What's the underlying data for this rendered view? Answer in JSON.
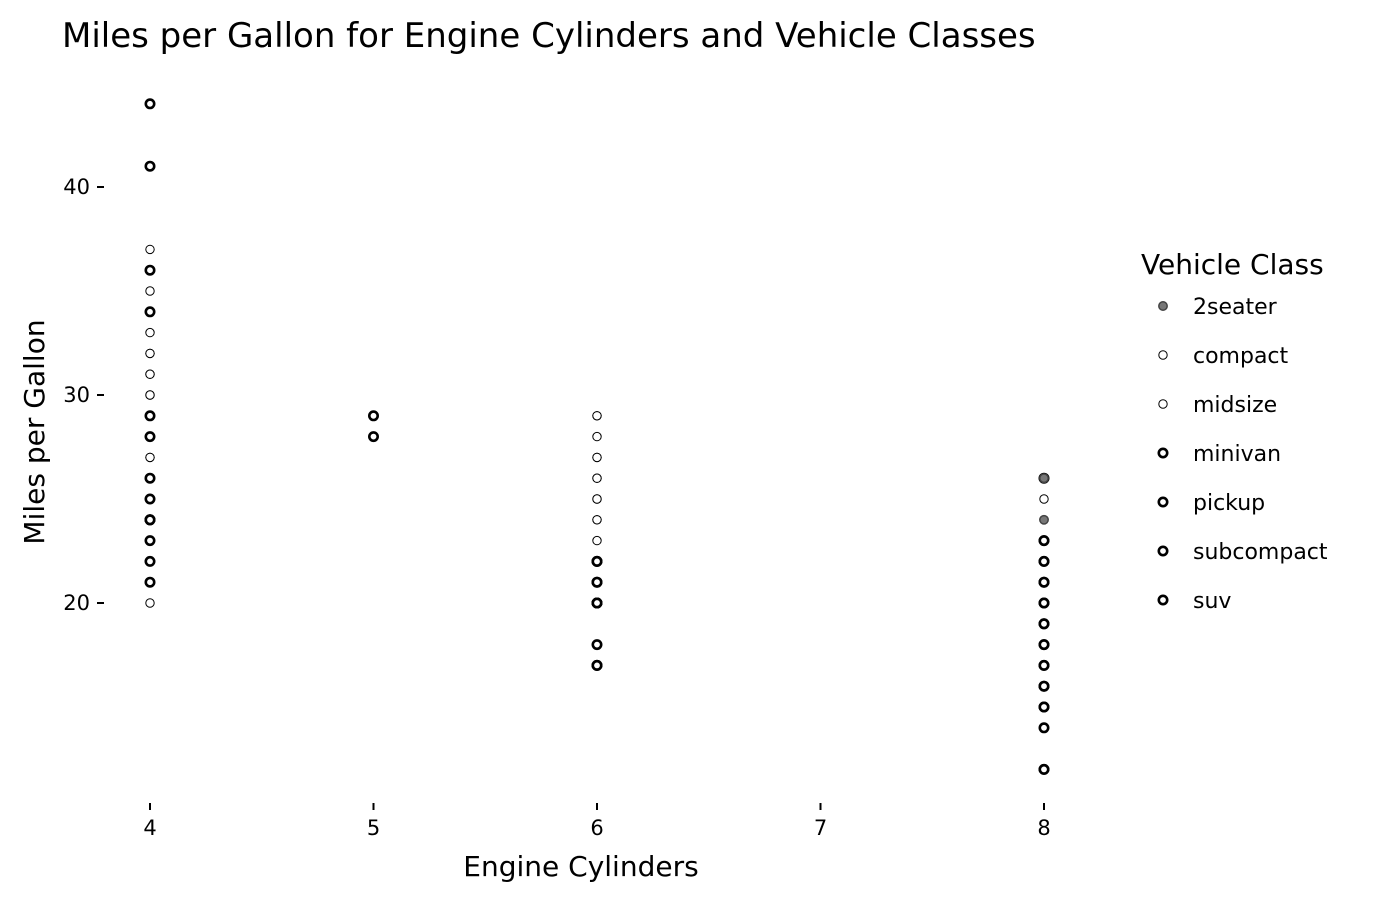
{
  "chart_data": {
    "type": "scatter",
    "title": "Miles per Gallon for Engine Cylinders and Vehicle Classes",
    "xlabel": "Engine Cylinders",
    "ylabel": "Miles per Gallon",
    "xlim": [
      3.6,
      8.4
    ],
    "ylim": [
      10.8,
      45.5
    ],
    "xticks": [
      4,
      5,
      6,
      7,
      8
    ],
    "yticks": [
      20,
      30,
      40
    ],
    "grid": false,
    "legend": {
      "title": "Vehicle Class",
      "placement": "right",
      "entries": [
        "2seater",
        "compact",
        "midsize",
        "minivan",
        "pickup",
        "subcompact",
        "suv"
      ]
    },
    "series": [
      {
        "name": "2seater",
        "x": [
          8,
          8
        ],
        "y": [
          26,
          24
        ]
      },
      {
        "name": "compact",
        "x": [
          4,
          4,
          4,
          4,
          4,
          4,
          4,
          4,
          4,
          4,
          4,
          4,
          4,
          4,
          4,
          4,
          6,
          6,
          6,
          6,
          6,
          6,
          8
        ],
        "y": [
          37,
          35,
          34,
          33,
          32,
          31,
          30,
          29,
          28,
          27,
          26,
          25,
          24,
          23,
          22,
          20,
          29,
          28,
          27,
          26,
          25,
          24,
          25
        ]
      },
      {
        "name": "midsize",
        "x": [
          4,
          4,
          4,
          4,
          4,
          4,
          4,
          4,
          4,
          6,
          6,
          6,
          6,
          6,
          6,
          6,
          6,
          8,
          8
        ],
        "y": [
          32,
          31,
          30,
          29,
          28,
          27,
          26,
          24,
          23,
          29,
          27,
          26,
          25,
          24,
          23,
          21,
          18,
          24,
          23
        ]
      },
      {
        "name": "minivan",
        "x": [
          4,
          4,
          6,
          6,
          6,
          6,
          6
        ],
        "y": [
          24,
          21,
          22,
          21,
          20,
          18,
          17
        ]
      },
      {
        "name": "pickup",
        "x": [
          6,
          6,
          8,
          8,
          8,
          8,
          8,
          8,
          8,
          8,
          8,
          8
        ],
        "y": [
          20,
          17,
          22,
          21,
          20,
          19,
          18,
          17,
          16,
          15,
          14,
          12
        ]
      },
      {
        "name": "subcompact",
        "x": [
          4,
          4,
          4,
          4,
          4,
          4,
          4,
          4,
          5,
          5,
          6,
          6,
          8,
          8,
          8
        ],
        "y": [
          44,
          41,
          36,
          34,
          29,
          28,
          26,
          24,
          29,
          28,
          22,
          20,
          26,
          23,
          22
        ]
      },
      {
        "name": "suv",
        "x": [
          4,
          4,
          4,
          4,
          6,
          6,
          6,
          6,
          8,
          8,
          8,
          8,
          8,
          8,
          8,
          8,
          8
        ],
        "y": [
          25,
          24,
          23,
          22,
          22,
          21,
          20,
          17,
          23,
          21,
          20,
          19,
          18,
          17,
          16,
          15,
          12
        ]
      }
    ]
  }
}
